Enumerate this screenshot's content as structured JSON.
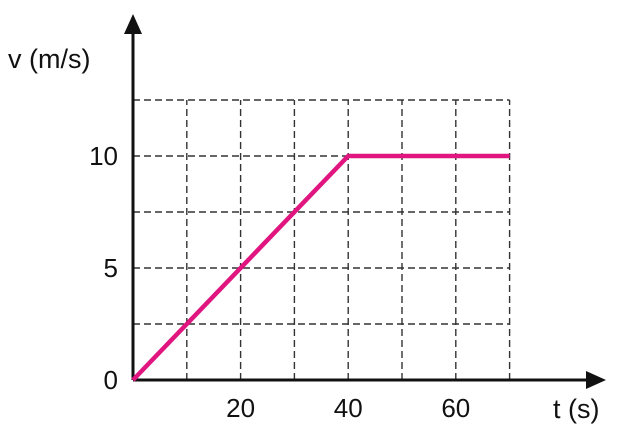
{
  "chart_data": {
    "type": "line",
    "xlabel": "t (s)",
    "ylabel": "v (m/s)",
    "xlim": [
      0,
      70
    ],
    "ylim": [
      0,
      12.5
    ],
    "x_ticks": [
      {
        "value": 20,
        "label": "20"
      },
      {
        "value": 40,
        "label": "40"
      },
      {
        "value": 60,
        "label": "60"
      }
    ],
    "y_ticks": [
      {
        "value": 0,
        "label": "0"
      },
      {
        "value": 5,
        "label": "5"
      },
      {
        "value": 10,
        "label": "10"
      }
    ],
    "grid": true,
    "grid_x_max": 70,
    "grid_y_max": 12.5,
    "grid_x_step": 10,
    "grid_y_step": 2.5,
    "series": [
      {
        "color": "#e0157f",
        "x": [
          0,
          40,
          70
        ],
        "y": [
          0,
          10,
          10
        ]
      }
    ]
  }
}
